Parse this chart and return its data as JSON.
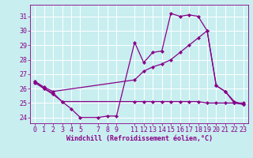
{
  "xlabel": "Windchill (Refroidissement éolien,°C)",
  "xlim": [
    -0.5,
    23.5
  ],
  "ylim": [
    23.6,
    31.8
  ],
  "yticks": [
    24,
    25,
    26,
    27,
    28,
    29,
    30,
    31
  ],
  "xtick_positions": [
    0,
    1,
    2,
    3,
    4,
    5,
    7,
    8,
    9,
    11,
    12,
    13,
    14,
    15,
    16,
    17,
    18,
    19,
    20,
    21,
    22,
    23
  ],
  "xtick_labels": [
    "0",
    "1",
    "2",
    "3",
    "4",
    "5",
    "7",
    "8",
    "9",
    "11",
    "12",
    "13",
    "14",
    "15",
    "16",
    "17",
    "18",
    "19",
    "20",
    "21",
    "22",
    "23"
  ],
  "bg_color": "#c8eef0",
  "grid_color": "#ffffff",
  "line_color": "#880088",
  "line1_x": [
    0,
    1,
    2,
    3,
    4,
    5,
    7,
    8,
    9,
    11,
    12,
    13,
    14,
    15,
    16,
    17,
    18,
    19,
    20,
    21,
    22,
    23
  ],
  "line1_y": [
    26.4,
    26.0,
    25.6,
    25.1,
    24.6,
    24.0,
    24.0,
    24.1,
    24.1,
    29.2,
    27.8,
    28.5,
    28.6,
    31.2,
    31.0,
    31.1,
    31.0,
    30.0,
    26.2,
    25.8,
    25.0,
    24.9
  ],
  "line2_x": [
    0,
    1,
    2,
    3,
    11,
    12,
    13,
    14,
    15,
    16,
    17,
    18,
    19,
    20,
    21,
    22,
    23
  ],
  "line2_y": [
    26.5,
    26.0,
    25.7,
    25.1,
    25.1,
    25.1,
    25.1,
    25.1,
    25.1,
    25.1,
    25.1,
    25.1,
    25.0,
    25.0,
    25.0,
    25.0,
    25.0
  ],
  "line3_x": [
    0,
    1,
    2,
    11,
    12,
    13,
    14,
    15,
    16,
    17,
    18,
    19,
    20,
    21,
    22,
    23
  ],
  "line3_y": [
    26.5,
    26.1,
    25.8,
    26.6,
    27.2,
    27.5,
    27.7,
    28.0,
    28.5,
    29.0,
    29.5,
    30.0,
    26.2,
    25.8,
    25.1,
    24.9
  ],
  "font_size": 6,
  "lw": 0.9,
  "ms": 2.2
}
